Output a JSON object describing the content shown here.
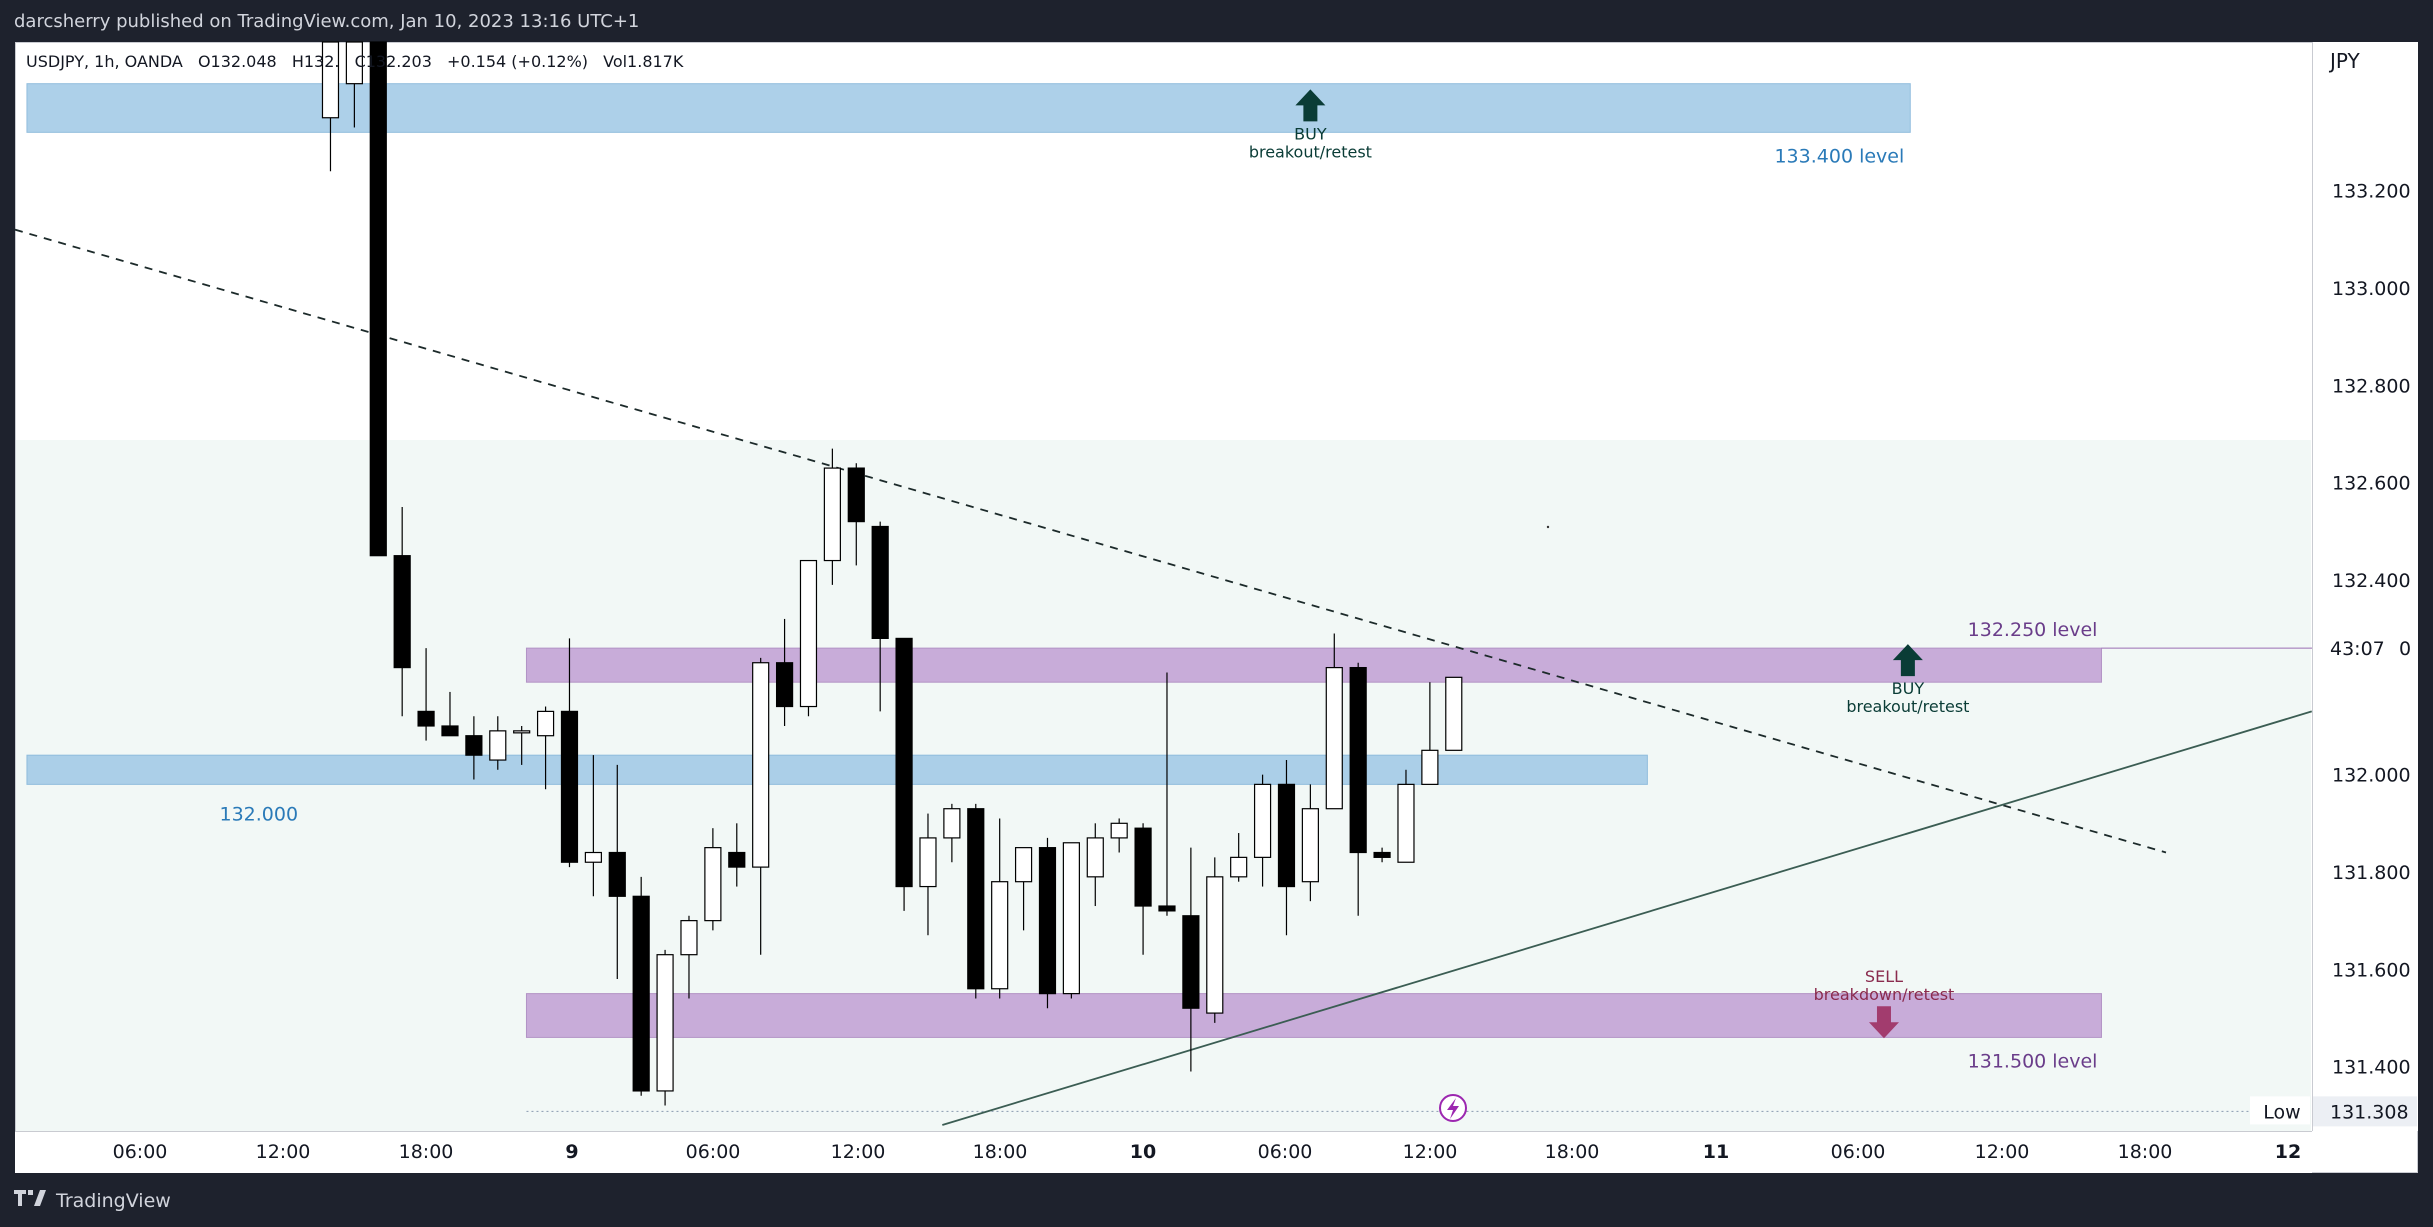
{
  "header": {
    "published": "darcsherry published on TradingView.com, Jan 10, 2023 13:16 UTC+1"
  },
  "legend": {
    "symbol": "USDJPY, 1h, OANDA",
    "open": "O132.048",
    "high": "H132.",
    "close": "C132.203",
    "change": "+0.154 (+0.12%)",
    "volume": "Vol1.817K"
  },
  "footer": {
    "brand": "TradingView",
    "logo_icon": "tradingview-logo-icon"
  },
  "colors": {
    "bg": "#1e222d",
    "up": "#ffffff",
    "down": "#000000",
    "blue_zone": "#9fc8e6",
    "purple_zone": "#b98fce",
    "green_zone": "#e8f3ef",
    "buy_arrow": "#0a3c36",
    "sell_arrow": "#a23c6e",
    "blue_text": "#2a7ab8",
    "purple_text": "#6a3d8a"
  },
  "chart_data": {
    "type": "candlestick",
    "symbol": "USDJPY",
    "interval": "1h",
    "currency": "JPY",
    "y_ticks": [
      "133.200",
      "133.000",
      "132.800",
      "132.600",
      "132.400",
      "132.000",
      "131.800",
      "131.600",
      "131.400"
    ],
    "x_ticks": [
      "06:00",
      "12:00",
      "18:00",
      "9",
      "06:00",
      "12:00",
      "18:00",
      "10",
      "06:00",
      "12:00",
      "18:00",
      "11",
      "06:00",
      "12:00",
      "18:00",
      "12"
    ],
    "ylim": [
      131.28,
      133.52
    ],
    "countdown_label": "43:07",
    "countdown_suffix": "0",
    "low_label": "Low",
    "low_value": "131.308",
    "zones": [
      {
        "kind": "blue",
        "low": 133.32,
        "high": 133.42,
        "from": 0.5,
        "to": 79.3,
        "label": "133.400 level"
      },
      {
        "kind": "blue",
        "low": 131.98,
        "high": 132.04,
        "from": 0.5,
        "to": 68.3,
        "label": "132.000"
      },
      {
        "kind": "purple",
        "low": 132.19,
        "high": 132.26,
        "from": 21.4,
        "to": 87.3,
        "label": "132.250 level"
      },
      {
        "kind": "purple",
        "low": 131.46,
        "high": 131.55,
        "from": 21.4,
        "to": 87.3,
        "label": "131.500 level"
      }
    ],
    "annotations": [
      {
        "type": "buy",
        "label1": "BUY",
        "label2": "breakout/retest",
        "x": 54.2,
        "y": 133.4
      },
      {
        "type": "buy",
        "label1": "BUY",
        "label2": "breakout/retest",
        "x": 79.2,
        "y": 132.26
      },
      {
        "type": "sell",
        "label1": "SELL",
        "label2": "breakdown/retest",
        "x": 78.2,
        "y": 131.52
      }
    ],
    "trendlines": [
      {
        "style": "dashed",
        "x1": 0,
        "y1": 133.12,
        "x2": 90,
        "y2": 131.84
      },
      {
        "style": "solid",
        "x1": 38.8,
        "y1": 131.28,
        "x2": 96.1,
        "y2": 132.13
      }
    ],
    "candles": [
      {
        "x": 13.2,
        "o": 133.35,
        "h": 133.61,
        "l": 133.24,
        "c": 133.52
      },
      {
        "x": 14.2,
        "o": 133.42,
        "h": 133.6,
        "l": 133.33,
        "c": 133.6
      },
      {
        "x": 15.2,
        "o": 133.63,
        "h": 133.63,
        "l": 132.45,
        "c": 132.45
      },
      {
        "x": 16.2,
        "o": 132.45,
        "h": 132.55,
        "l": 132.12,
        "c": 132.22
      },
      {
        "x": 17.2,
        "o": 132.13,
        "h": 132.26,
        "l": 132.07,
        "c": 132.1
      },
      {
        "x": 18.2,
        "o": 132.1,
        "h": 132.17,
        "l": 132.09,
        "c": 132.08
      },
      {
        "x": 19.2,
        "o": 132.08,
        "h": 132.12,
        "l": 131.99,
        "c": 132.04
      },
      {
        "x": 20.2,
        "o": 132.03,
        "h": 132.12,
        "l": 132.01,
        "c": 132.09
      },
      {
        "x": 21.2,
        "o": 132.09,
        "h": 132.1,
        "l": 132.02,
        "c": 132.09
      },
      {
        "x": 22.2,
        "o": 132.08,
        "h": 132.14,
        "l": 131.97,
        "c": 132.13
      },
      {
        "x": 23.2,
        "o": 132.13,
        "h": 132.28,
        "l": 131.81,
        "c": 131.82
      },
      {
        "x": 24.2,
        "o": 131.82,
        "h": 132.04,
        "l": 131.75,
        "c": 131.84
      },
      {
        "x": 25.2,
        "o": 131.84,
        "h": 132.02,
        "l": 131.58,
        "c": 131.75
      },
      {
        "x": 26.2,
        "o": 131.75,
        "h": 131.79,
        "l": 131.34,
        "c": 131.35
      },
      {
        "x": 27.2,
        "o": 131.35,
        "h": 131.64,
        "l": 131.32,
        "c": 131.63
      },
      {
        "x": 28.2,
        "o": 131.63,
        "h": 131.71,
        "l": 131.54,
        "c": 131.7
      },
      {
        "x": 29.2,
        "o": 131.7,
        "h": 131.89,
        "l": 131.68,
        "c": 131.85
      },
      {
        "x": 30.2,
        "o": 131.84,
        "h": 131.9,
        "l": 131.77,
        "c": 131.81
      },
      {
        "x": 31.2,
        "o": 131.81,
        "h": 132.24,
        "l": 131.63,
        "c": 132.23
      },
      {
        "x": 32.2,
        "o": 132.23,
        "h": 132.32,
        "l": 132.1,
        "c": 132.14
      },
      {
        "x": 33.2,
        "o": 132.14,
        "h": 132.42,
        "l": 132.12,
        "c": 132.44
      },
      {
        "x": 34.2,
        "o": 132.44,
        "h": 132.67,
        "l": 132.39,
        "c": 132.63
      },
      {
        "x": 35.2,
        "o": 132.63,
        "h": 132.64,
        "l": 132.43,
        "c": 132.52
      },
      {
        "x": 36.2,
        "o": 132.51,
        "h": 132.52,
        "l": 132.13,
        "c": 132.28
      },
      {
        "x": 37.2,
        "o": 132.28,
        "h": 132.28,
        "l": 131.72,
        "c": 131.77
      },
      {
        "x": 38.2,
        "o": 131.77,
        "h": 131.92,
        "l": 131.67,
        "c": 131.87
      },
      {
        "x": 39.2,
        "o": 131.87,
        "h": 131.94,
        "l": 131.82,
        "c": 131.93
      },
      {
        "x": 40.2,
        "o": 131.93,
        "h": 131.94,
        "l": 131.54,
        "c": 131.56
      },
      {
        "x": 41.2,
        "o": 131.56,
        "h": 131.91,
        "l": 131.54,
        "c": 131.78
      },
      {
        "x": 42.2,
        "o": 131.78,
        "h": 131.85,
        "l": 131.68,
        "c": 131.85
      },
      {
        "x": 43.2,
        "o": 131.85,
        "h": 131.87,
        "l": 131.52,
        "c": 131.55
      },
      {
        "x": 44.2,
        "o": 131.55,
        "h": 131.86,
        "l": 131.54,
        "c": 131.86
      },
      {
        "x": 45.2,
        "o": 131.79,
        "h": 131.9,
        "l": 131.73,
        "c": 131.87
      },
      {
        "x": 46.2,
        "o": 131.87,
        "h": 131.91,
        "l": 131.84,
        "c": 131.9
      },
      {
        "x": 47.2,
        "o": 131.89,
        "h": 131.9,
        "l": 131.63,
        "c": 131.73
      },
      {
        "x": 48.2,
        "o": 131.73,
        "h": 132.21,
        "l": 131.71,
        "c": 131.72
      },
      {
        "x": 49.2,
        "o": 131.71,
        "h": 131.85,
        "l": 131.39,
        "c": 131.52
      },
      {
        "x": 50.2,
        "o": 131.51,
        "h": 131.83,
        "l": 131.49,
        "c": 131.79
      },
      {
        "x": 51.2,
        "o": 131.79,
        "h": 131.88,
        "l": 131.78,
        "c": 131.83
      },
      {
        "x": 52.2,
        "o": 131.83,
        "h": 132.0,
        "l": 131.77,
        "c": 131.98
      },
      {
        "x": 53.2,
        "o": 131.98,
        "h": 132.03,
        "l": 131.67,
        "c": 131.77
      },
      {
        "x": 54.2,
        "o": 131.78,
        "h": 131.98,
        "l": 131.74,
        "c": 131.93
      },
      {
        "x": 55.2,
        "o": 131.93,
        "h": 132.29,
        "l": 131.93,
        "c": 132.22
      },
      {
        "x": 56.2,
        "o": 132.22,
        "h": 132.23,
        "l": 131.71,
        "c": 131.84
      },
      {
        "x": 57.2,
        "o": 131.84,
        "h": 131.85,
        "l": 131.82,
        "c": 131.83
      },
      {
        "x": 58.2,
        "o": 131.82,
        "h": 132.01,
        "l": 131.82,
        "c": 131.98
      },
      {
        "x": 59.2,
        "o": 131.98,
        "h": 132.19,
        "l": 131.98,
        "c": 132.05
      },
      {
        "x": 60.2,
        "o": 132.05,
        "h": 132.2,
        "l": 132.05,
        "c": 132.2
      }
    ]
  }
}
